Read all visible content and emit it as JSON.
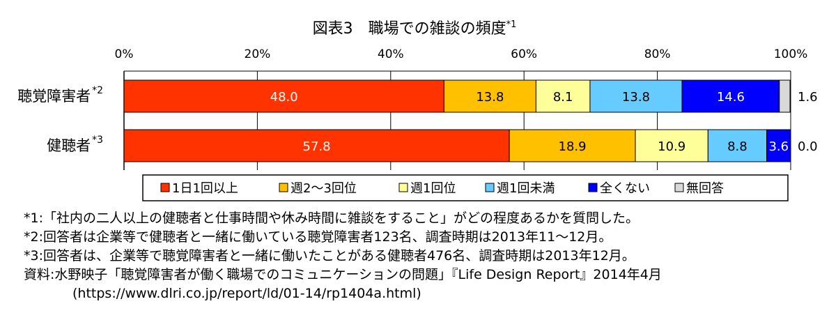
{
  "chart_data": {
    "type": "bar",
    "orientation": "horizontal",
    "stacked": true,
    "title": "図表3　職場での雑談の頻度",
    "title_sup": "*1",
    "x_ticks": [
      "0%",
      "20%",
      "40%",
      "60%",
      "80%",
      "100%"
    ],
    "xlim": [
      0,
      100
    ],
    "grid": true,
    "legend_position": "bottom",
    "categories": [
      {
        "label": "聴覚障害者",
        "sup": "*2"
      },
      {
        "label": "健聴者",
        "sup": "*3"
      }
    ],
    "series": [
      {
        "name": "1日1回以上",
        "color": "#ff3300",
        "label_color": "#ffffff",
        "values": [
          48.0,
          57.8
        ],
        "labels": [
          "48.0",
          "57.8"
        ]
      },
      {
        "name": "週2～3回位",
        "color": "#ffc000",
        "label_color": "#000000",
        "values": [
          13.8,
          18.9
        ],
        "labels": [
          "13.8",
          "18.9"
        ]
      },
      {
        "name": "週1回位",
        "color": "#ffff99",
        "label_color": "#000000",
        "values": [
          8.1,
          10.9
        ],
        "labels": [
          "8.1",
          "10.9"
        ]
      },
      {
        "name": "週1回未満",
        "color": "#66ccff",
        "label_color": "#000000",
        "values": [
          13.8,
          8.8
        ],
        "labels": [
          "13.8",
          "8.8"
        ]
      },
      {
        "name": "全くない",
        "color": "#0000ff",
        "label_color": "#ffffff",
        "values": [
          14.6,
          3.6
        ],
        "labels": [
          "14.6",
          "3.6"
        ]
      },
      {
        "name": "無回答",
        "color": "#d9d9d9",
        "label_color": "#000000",
        "values": [
          1.6,
          0.0
        ],
        "labels": [
          "1.6",
          "0.0"
        ],
        "label_outside": true
      }
    ]
  },
  "notes": [
    "*1:「社内の二人以上の健聴者と仕事時間や休み時間に雑談をすること」がどの程度あるかを質問した。",
    "*2:回答者は企業等で健聴者と一緒に働いている聴覚障害者123名、調査時期は2013年11～12月。",
    "*3:回答者は、企業等で聴覚障害者と一緒に働いたことがある健聴者476名、調査時期は2013年12月。",
    "資料:水野映子「聴覚障害者が働く職場でのコミュニケーションの問題」『Life Design Report』2014年4月",
    "(https://www.dlri.co.jp/report/ld/01-14/rp1404a.html)"
  ]
}
